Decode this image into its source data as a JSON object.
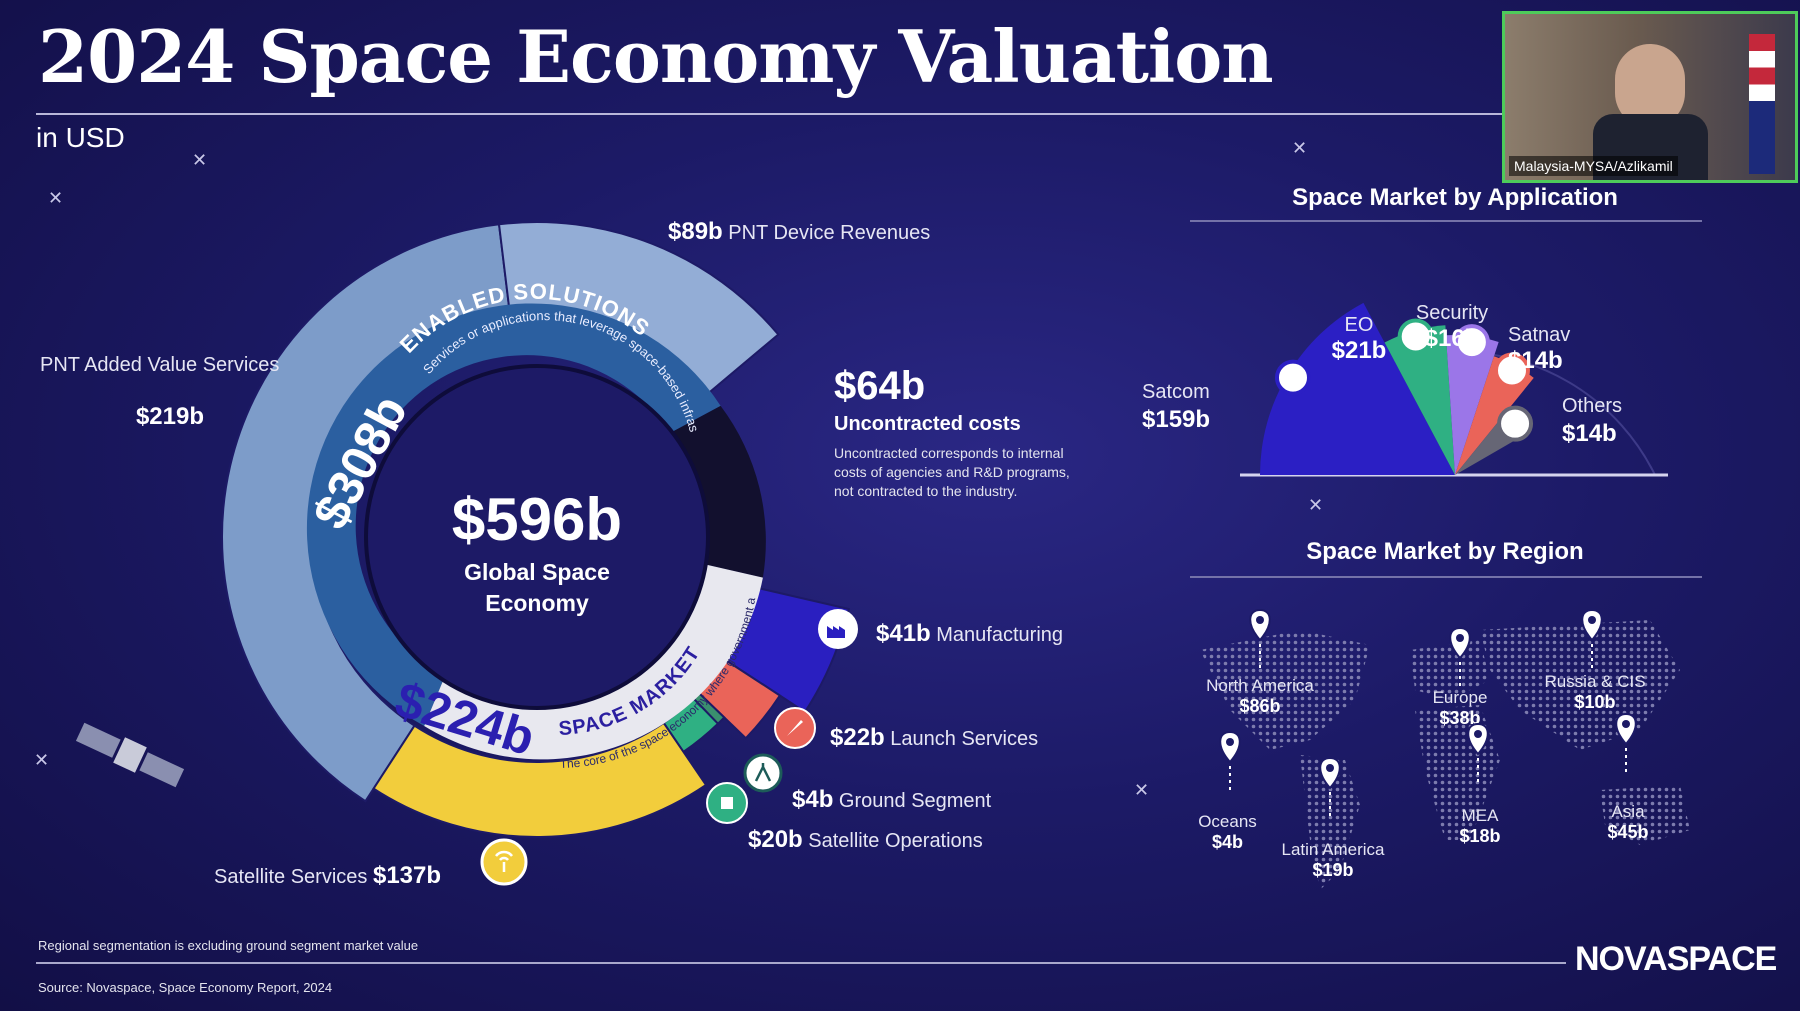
{
  "title": "2024 Space Economy Valuation",
  "subtitle": "in USD",
  "chart_data": [
    {
      "type": "pie",
      "title": "",
      "center": {
        "value": "$596b",
        "label": "Global Space Economy"
      },
      "inner_ring": [
        {
          "name": "ENABLED SOLUTIONS",
          "value": "$308b",
          "description": "Services or applications that leverage space-based infrastructure, such as satellite signals or data."
        },
        {
          "name": "Uncontracted costs",
          "value": "$64b",
          "description": "Uncontracted corresponds to internal costs of agencies and R&D programs, not contracted to the industry."
        },
        {
          "name": "SPACE MARKET",
          "value": "$224b",
          "description": "The core of the space economy where government and commercial players interact."
        }
      ],
      "outer_ring": [
        {
          "name": "PNT Added Value Services",
          "value": 219,
          "display": "$219b",
          "color": "#7d9cc9"
        },
        {
          "name": "PNT Device Revenues",
          "value": 89,
          "display": "$89b",
          "color": "#93add6"
        },
        {
          "name": "Manufacturing",
          "value": 41,
          "display": "$41b",
          "color": "#2a1fc0"
        },
        {
          "name": "Launch Services",
          "value": 22,
          "display": "$22b",
          "color": "#ea6459"
        },
        {
          "name": "Ground Segment",
          "value": 4,
          "display": "$4b",
          "color": "#3a8f6e"
        },
        {
          "name": "Satellite Operations",
          "value": 20,
          "display": "$20b",
          "color": "#2fb083"
        },
        {
          "name": "Satellite Services",
          "value": 137,
          "display": "$137b",
          "color": "#f2cd3c"
        }
      ]
    },
    {
      "type": "pie",
      "title": "Space Market by Application",
      "slices": [
        {
          "name": "Satcom",
          "value": 159,
          "display": "$159b",
          "color": "#2b1fc4"
        },
        {
          "name": "EO",
          "value": 21,
          "display": "$21b",
          "color": "#2fb083"
        },
        {
          "name": "Security",
          "value": 16,
          "display": "$16b",
          "color": "#9b76e8"
        },
        {
          "name": "Satnav",
          "value": 14,
          "display": "$14b",
          "color": "#ea6459"
        },
        {
          "name": "Others",
          "value": 14,
          "display": "$14b",
          "color": "#666675"
        }
      ]
    },
    {
      "type": "table",
      "title": "Space Market by Region",
      "regions": [
        {
          "name": "North America",
          "display": "$86b"
        },
        {
          "name": "Europe",
          "display": "$38b"
        },
        {
          "name": "Russia & CIS",
          "display": "$10b"
        },
        {
          "name": "Oceans",
          "display": "$4b"
        },
        {
          "name": "Latin America",
          "display": "$19b"
        },
        {
          "name": "MEA",
          "display": "$18b"
        },
        {
          "name": "Asia",
          "display": "$45b"
        }
      ]
    }
  ],
  "footnote": "Regional segmentation is excluding ground segment market value",
  "source": "Source: Novaspace, Space Economy Report, 2024",
  "logo": "NOVASPACE",
  "video": {
    "participant": "Malaysia-MYSA/Azlikamil"
  },
  "colors": {
    "background": "#1c1a66",
    "dark_segment": "#12102e",
    "ring_blue": "#2b5fa0"
  }
}
